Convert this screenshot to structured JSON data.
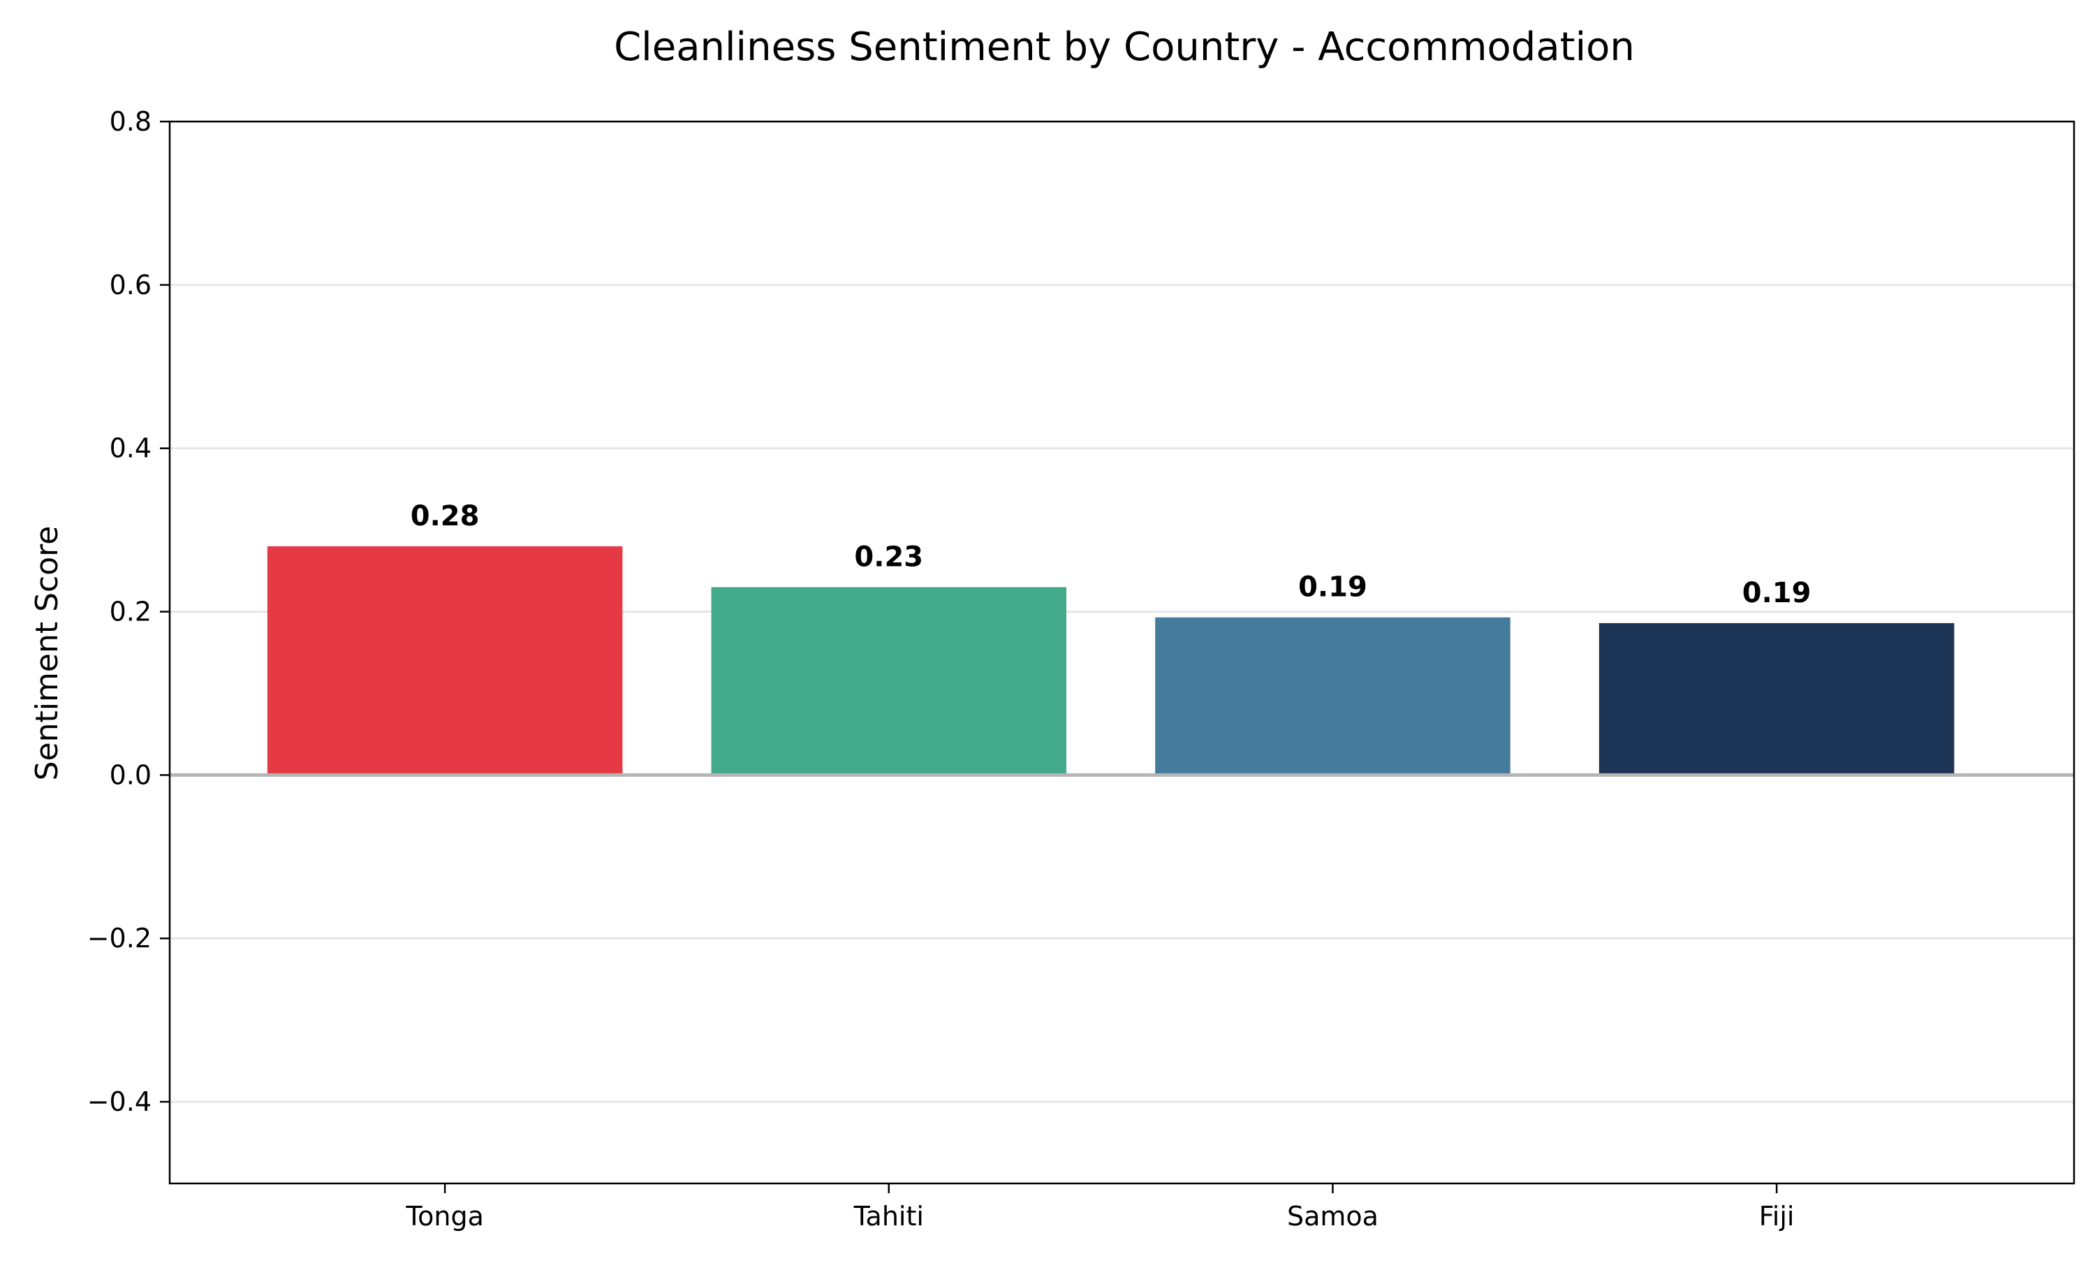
{
  "chart_data": {
    "type": "bar",
    "title": "Cleanliness Sentiment by Country - Accommodation",
    "xlabel": "",
    "ylabel": "Sentiment Score",
    "categories": [
      "Tonga",
      "Tahiti",
      "Samoa",
      "Fiji"
    ],
    "values": [
      0.28,
      0.23,
      0.193,
      0.186
    ],
    "data_labels": [
      "0.28",
      "0.23",
      "0.19",
      "0.19"
    ],
    "colors": [
      "#e63946",
      "#43aa8b",
      "#457b9d",
      "#1d3557"
    ],
    "ylim": [
      -0.5,
      0.8
    ],
    "yticks": [
      -0.4,
      -0.2,
      0.0,
      0.2,
      0.4,
      0.6,
      0.8
    ],
    "ytick_labels": [
      "−0.4",
      "−0.2",
      "0.0",
      "0.2",
      "0.4",
      "0.6",
      "0.8"
    ],
    "grid": true,
    "zero_line": true,
    "legend": "none"
  }
}
